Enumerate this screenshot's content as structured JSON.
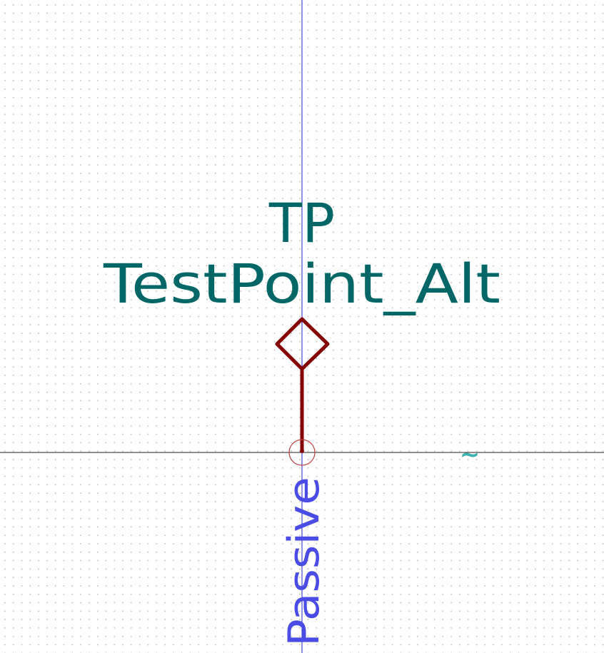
{
  "symbol": {
    "reference": "TP",
    "value": "TestPoint_Alt",
    "pin_electrical_type": "Passive",
    "pin_hidden_name_marker": "~"
  },
  "colors": {
    "background": "#ffffff",
    "grid_dot": "#c4c4c4",
    "y_axis": "#2020d0",
    "x_axis": "#202020",
    "symbol_body": "#840000",
    "field_text": "#006666",
    "pin_type_text": "#4b4be6",
    "pin_name_marker": "#40b0b0",
    "pin_anchor_circle": "#c04040"
  }
}
